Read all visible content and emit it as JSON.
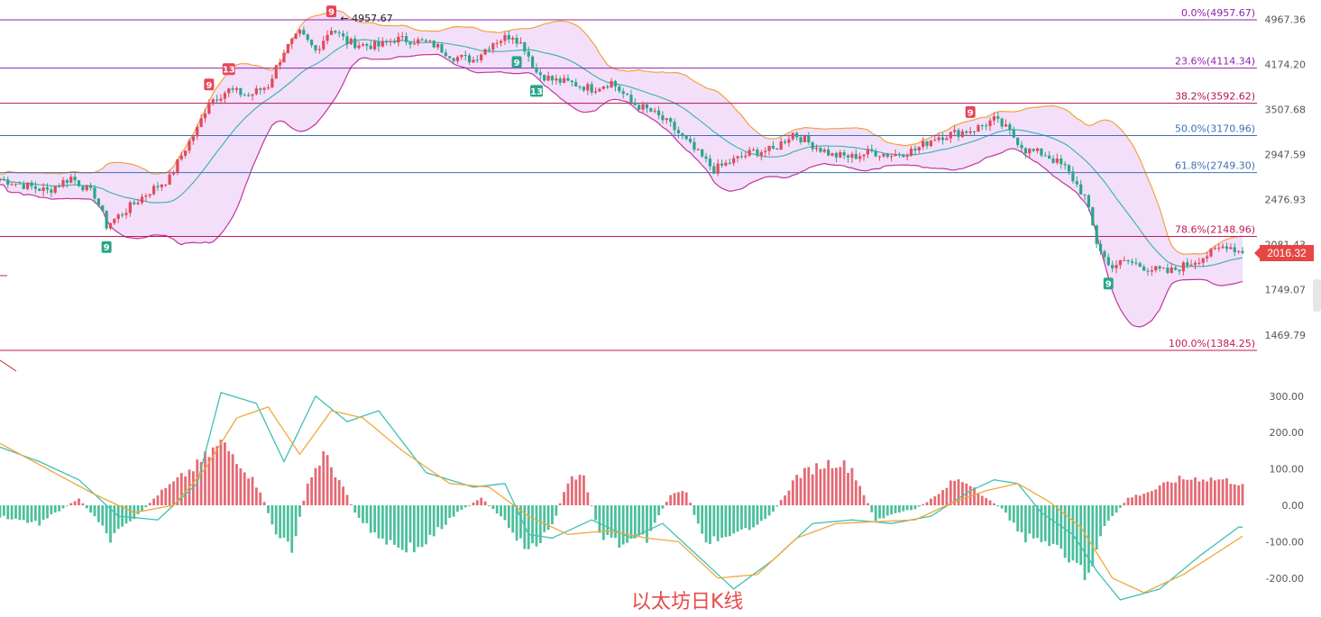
{
  "chart_data": [
    {
      "type": "candlestick",
      "panel": "price",
      "title": "",
      "current_price": "2016.32",
      "high_label": "4957.67",
      "y_ticks": [
        "4967.36",
        "4174.20",
        "3507.68",
        "2947.59",
        "2476.93",
        "2081.43",
        "1749.07",
        "1469.79"
      ],
      "fibonacci_levels": [
        {
          "label": "0.0%(4957.67)",
          "price": 4957.67,
          "color": "#8e24aa"
        },
        {
          "label": "23.6%(4114.34)",
          "price": 4114.34,
          "color": "#8e24aa"
        },
        {
          "label": "38.2%(3592.62)",
          "price": 3592.62,
          "color": "#ad1457"
        },
        {
          "label": "50.0%(3170.96)",
          "price": 3170.96,
          "color": "#3f6fb5"
        },
        {
          "label": "61.8%(2749.30)",
          "price": 2749.3,
          "color": "#3f6fb5"
        },
        {
          "label": "78.6%(2148.96)",
          "price": 2148.96,
          "color": "#c2185b"
        },
        {
          "label": "100.0%(1384.25)",
          "price": 1384.25,
          "color": "#c2185b"
        }
      ],
      "close_trend": [
        [
          0,
          2680
        ],
        [
          6,
          2620
        ],
        [
          12,
          2560
        ],
        [
          18,
          2700
        ],
        [
          24,
          2520
        ],
        [
          27,
          2240
        ],
        [
          32,
          2380
        ],
        [
          38,
          2560
        ],
        [
          43,
          2690
        ],
        [
          47,
          3020
        ],
        [
          50,
          3250
        ],
        [
          53,
          3620
        ],
        [
          58,
          3780
        ],
        [
          63,
          3700
        ],
        [
          68,
          3850
        ],
        [
          72,
          4400
        ],
        [
          76,
          4700
        ],
        [
          80,
          4400
        ],
        [
          84,
          4800
        ],
        [
          88,
          4550
        ],
        [
          92,
          4500
        ],
        [
          96,
          4480
        ],
        [
          100,
          4600
        ],
        [
          105,
          4580
        ],
        [
          110,
          4500
        ],
        [
          115,
          4300
        ],
        [
          120,
          4250
        ],
        [
          125,
          4550
        ],
        [
          130,
          4680
        ],
        [
          133,
          4450
        ],
        [
          136,
          4050
        ],
        [
          140,
          3930
        ],
        [
          145,
          3880
        ],
        [
          150,
          3800
        ],
        [
          155,
          3900
        ],
        [
          160,
          3600
        ],
        [
          165,
          3480
        ],
        [
          170,
          3300
        ],
        [
          176,
          3000
        ],
        [
          181,
          2780
        ],
        [
          186,
          2880
        ],
        [
          191,
          2980
        ],
        [
          196,
          3000
        ],
        [
          201,
          3200
        ],
        [
          206,
          3060
        ],
        [
          211,
          2940
        ],
        [
          216,
          2920
        ],
        [
          221,
          2980
        ],
        [
          226,
          2940
        ],
        [
          232,
          3000
        ],
        [
          237,
          3150
        ],
        [
          242,
          3200
        ],
        [
          247,
          3250
        ],
        [
          252,
          3370
        ],
        [
          255,
          3260
        ],
        [
          260,
          3000
        ],
        [
          265,
          2950
        ],
        [
          270,
          2800
        ],
        [
          275,
          2500
        ],
        [
          278,
          2100
        ],
        [
          281,
          1920
        ],
        [
          286,
          1950
        ],
        [
          291,
          1900
        ],
        [
          296,
          1870
        ],
        [
          301,
          1930
        ],
        [
          306,
          2000
        ],
        [
          311,
          2080
        ],
        [
          315,
          2016
        ]
      ],
      "td_markers": [
        {
          "label": "9",
          "i": 27,
          "type": "buy"
        },
        {
          "label": "9",
          "i": 53,
          "type": "sell"
        },
        {
          "label": "13",
          "i": 58,
          "type": "sell"
        },
        {
          "label": "9",
          "i": 84,
          "type": "sell"
        },
        {
          "label": "9",
          "i": 131,
          "type": "buy"
        },
        {
          "label": "13",
          "i": 136,
          "type": "buy"
        },
        {
          "label": "9",
          "i": 246,
          "type": "sell"
        },
        {
          "label": "9",
          "i": 281,
          "type": "buy"
        }
      ]
    },
    {
      "type": "macd",
      "panel": "indicator",
      "y_ticks": [
        "300.00",
        "200.00",
        "100.00",
        "0.00",
        "-100.00",
        "-200.00"
      ],
      "dif_points": [
        [
          0,
          160
        ],
        [
          10,
          120
        ],
        [
          20,
          70
        ],
        [
          30,
          -30
        ],
        [
          40,
          -40
        ],
        [
          50,
          60
        ],
        [
          56,
          310
        ],
        [
          65,
          280
        ],
        [
          72,
          120
        ],
        [
          80,
          300
        ],
        [
          88,
          230
        ],
        [
          96,
          260
        ],
        [
          108,
          90
        ],
        [
          120,
          50
        ],
        [
          128,
          60
        ],
        [
          134,
          -80
        ],
        [
          140,
          -90
        ],
        [
          150,
          -40
        ],
        [
          160,
          -90
        ],
        [
          168,
          -50
        ],
        [
          176,
          -130
        ],
        [
          186,
          -230
        ],
        [
          196,
          -150
        ],
        [
          206,
          -50
        ],
        [
          216,
          -40
        ],
        [
          226,
          -50
        ],
        [
          236,
          -30
        ],
        [
          246,
          40
        ],
        [
          252,
          70
        ],
        [
          258,
          60
        ],
        [
          264,
          -20
        ],
        [
          272,
          -80
        ],
        [
          278,
          -180
        ],
        [
          284,
          -260
        ],
        [
          294,
          -230
        ],
        [
          304,
          -140
        ],
        [
          314,
          -60
        ]
      ],
      "dea_points": [
        [
          0,
          170
        ],
        [
          12,
          100
        ],
        [
          24,
          30
        ],
        [
          34,
          -20
        ],
        [
          44,
          0
        ],
        [
          52,
          100
        ],
        [
          60,
          240
        ],
        [
          68,
          270
        ],
        [
          76,
          140
        ],
        [
          84,
          260
        ],
        [
          92,
          240
        ],
        [
          102,
          150
        ],
        [
          114,
          60
        ],
        [
          124,
          50
        ],
        [
          134,
          -30
        ],
        [
          144,
          -80
        ],
        [
          154,
          -70
        ],
        [
          164,
          -90
        ],
        [
          172,
          -100
        ],
        [
          182,
          -200
        ],
        [
          192,
          -190
        ],
        [
          202,
          -90
        ],
        [
          212,
          -50
        ],
        [
          222,
          -45
        ],
        [
          232,
          -40
        ],
        [
          242,
          10
        ],
        [
          250,
          40
        ],
        [
          258,
          60
        ],
        [
          266,
          10
        ],
        [
          274,
          -60
        ],
        [
          282,
          -200
        ],
        [
          290,
          -240
        ],
        [
          300,
          -190
        ],
        [
          310,
          -120
        ],
        [
          315,
          -85
        ]
      ],
      "hist_points": [
        [
          0,
          -30
        ],
        [
          10,
          -50
        ],
        [
          20,
          20
        ],
        [
          28,
          -90
        ],
        [
          34,
          -40
        ],
        [
          40,
          30
        ],
        [
          45,
          70
        ],
        [
          50,
          110
        ],
        [
          56,
          170
        ],
        [
          60,
          130
        ],
        [
          66,
          40
        ],
        [
          70,
          -80
        ],
        [
          74,
          -120
        ],
        [
          78,
          60
        ],
        [
          82,
          140
        ],
        [
          86,
          70
        ],
        [
          90,
          -20
        ],
        [
          94,
          -70
        ],
        [
          100,
          -110
        ],
        [
          106,
          -120
        ],
        [
          110,
          -80
        ],
        [
          116,
          -20
        ],
        [
          122,
          20
        ],
        [
          128,
          -40
        ],
        [
          134,
          -130
        ],
        [
          140,
          -60
        ],
        [
          144,
          70
        ],
        [
          148,
          80
        ],
        [
          152,
          -80
        ],
        [
          158,
          -110
        ],
        [
          164,
          -90
        ],
        [
          170,
          30
        ],
        [
          174,
          40
        ],
        [
          178,
          -90
        ],
        [
          184,
          -100
        ],
        [
          190,
          -60
        ],
        [
          196,
          -20
        ],
        [
          202,
          80
        ],
        [
          208,
          110
        ],
        [
          212,
          120
        ],
        [
          216,
          100
        ],
        [
          222,
          -40
        ],
        [
          228,
          -20
        ],
        [
          232,
          -10
        ],
        [
          238,
          30
        ],
        [
          242,
          70
        ],
        [
          246,
          60
        ],
        [
          250,
          20
        ],
        [
          254,
          -10
        ],
        [
          260,
          -90
        ],
        [
          266,
          -100
        ],
        [
          270,
          -150
        ],
        [
          276,
          -190
        ],
        [
          280,
          -60
        ],
        [
          286,
          20
        ],
        [
          292,
          40
        ],
        [
          298,
          70
        ],
        [
          304,
          75
        ],
        [
          310,
          70
        ],
        [
          315,
          60
        ]
      ]
    }
  ],
  "caption": "以太坊日K线"
}
